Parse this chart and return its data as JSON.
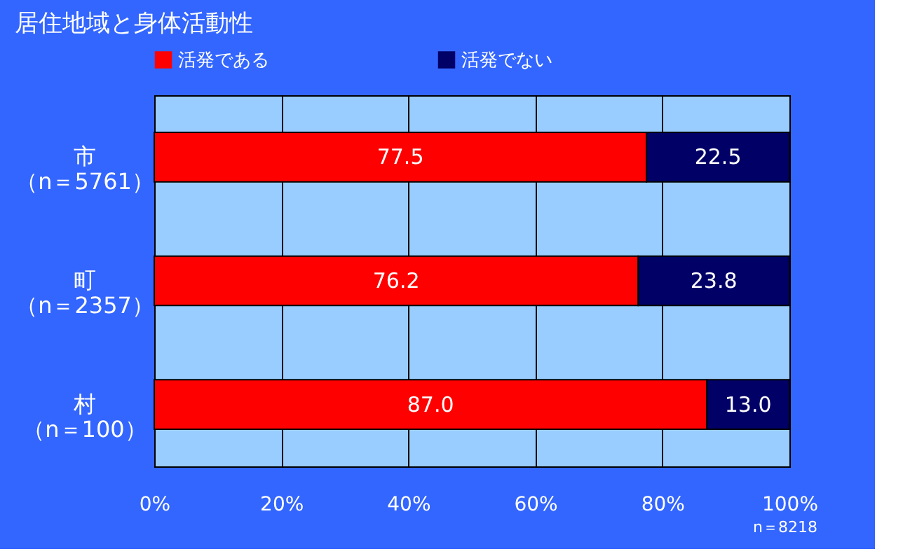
{
  "chart_data": {
    "type": "bar",
    "orientation": "horizontal",
    "stacked": true,
    "title": "居住地域と身体活動性",
    "categories": [
      "市（n＝5761）",
      "町（n＝2357）",
      "村（n＝100）"
    ],
    "series": [
      {
        "name": "活発である",
        "color": "#ff0000",
        "values": [
          77.5,
          76.2,
          87.0
        ]
      },
      {
        "name": "活発でない",
        "color": "#000066",
        "values": [
          22.5,
          23.8,
          13.0
        ]
      }
    ],
    "value_labels": [
      [
        "77.5",
        "76.2",
        "87.0"
      ],
      [
        "22.5",
        "23.8",
        "13.0"
      ]
    ],
    "xlim": [
      0,
      100
    ],
    "xticks": [
      {
        "value": 0,
        "label": "0%"
      },
      {
        "value": 20,
        "label": "20%"
      },
      {
        "value": 40,
        "label": "40%"
      },
      {
        "value": 60,
        "label": "60%"
      },
      {
        "value": 80,
        "label": "80%"
      },
      {
        "value": 100,
        "label": "100%"
      }
    ],
    "grid": "x",
    "legend": "top",
    "annotations": [
      "n＝8218"
    ]
  }
}
